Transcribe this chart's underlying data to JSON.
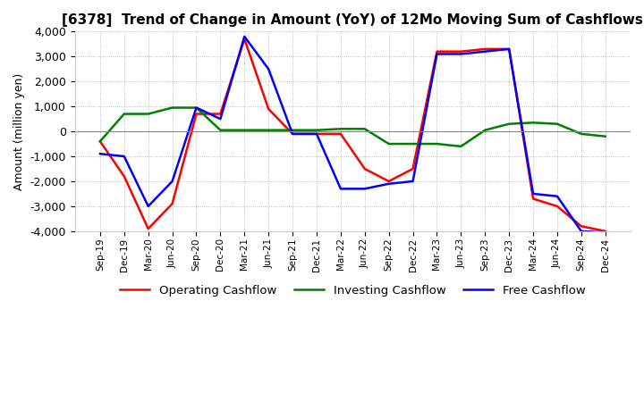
{
  "title": "[6378]  Trend of Change in Amount (YoY) of 12Mo Moving Sum of Cashflows",
  "ylabel": "Amount (million yen)",
  "ylim": [
    -4000,
    4000
  ],
  "yticks": [
    -4000,
    -3000,
    -2000,
    -1000,
    0,
    1000,
    2000,
    3000,
    4000
  ],
  "x_labels": [
    "Sep-19",
    "Dec-19",
    "Mar-20",
    "Jun-20",
    "Sep-20",
    "Dec-20",
    "Mar-21",
    "Jun-21",
    "Sep-21",
    "Dec-21",
    "Mar-22",
    "Jun-22",
    "Sep-22",
    "Dec-22",
    "Mar-23",
    "Jun-23",
    "Sep-23",
    "Dec-23",
    "Mar-24",
    "Jun-24",
    "Sep-24",
    "Dec-24"
  ],
  "operating": [
    -400,
    -1800,
    -3900,
    -2900,
    700,
    700,
    3700,
    900,
    -100,
    -100,
    -100,
    -1500,
    -2000,
    -1500,
    3200,
    3200,
    3300,
    3300,
    -2700,
    -3000,
    -3800,
    -4000
  ],
  "investing": [
    -400,
    700,
    700,
    950,
    950,
    50,
    50,
    50,
    50,
    50,
    100,
    100,
    -500,
    -500,
    -500,
    -600,
    50,
    300,
    350,
    300,
    -100,
    -200
  ],
  "free": [
    -900,
    -1000,
    -3000,
    -2000,
    950,
    500,
    3800,
    2500,
    -100,
    -100,
    -2300,
    -2300,
    -2100,
    -2000,
    3100,
    3100,
    3200,
    3300,
    -2500,
    -2600,
    -4000,
    -4050
  ],
  "operating_color": "#ff0000",
  "investing_color": "#008000",
  "free_color": "#0000ff",
  "background_color": "#ffffff",
  "grid_color": "#aaaaaa",
  "title_fontsize": 11,
  "legend_labels": [
    "Operating Cashflow",
    "Investing Cashflow",
    "Free Cashflow"
  ]
}
